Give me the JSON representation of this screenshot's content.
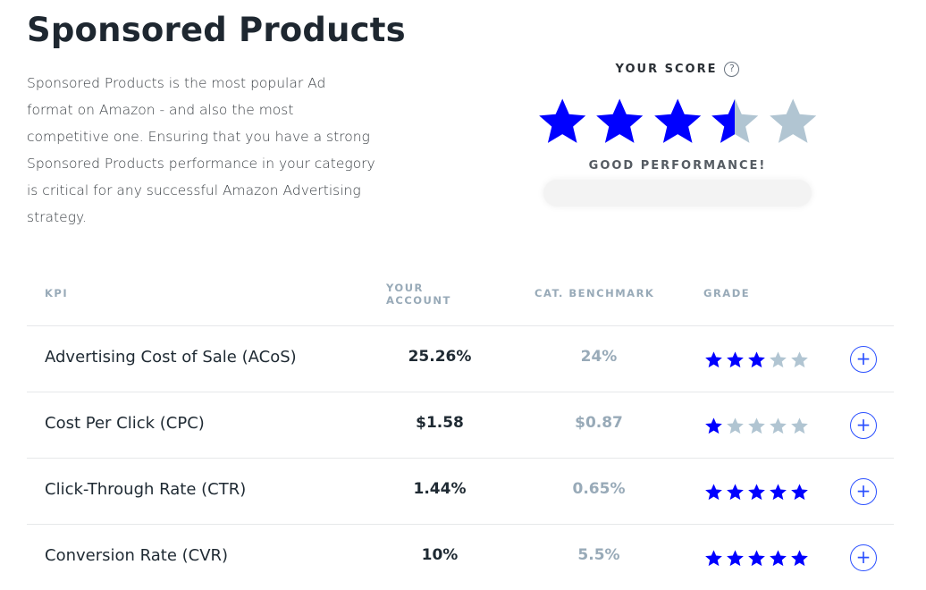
{
  "title": "Sponsored Products",
  "description": "Sponsored Products is the most popular Ad format on Amazon - and also the most competitive one. Ensuring that you have a strong Sponsored Products performance in your category is critical for any successful Amazon Advertising strategy.",
  "score": {
    "label": "YOUR SCORE",
    "help_icon": "?",
    "rating": 3.5,
    "max": 5,
    "verdict": "GOOD PERFORMANCE!"
  },
  "colors": {
    "star_filled": "#0000ff",
    "star_empty": "#b1c5d2",
    "accent": "#2b50ff"
  },
  "table": {
    "headers": {
      "kpi": "KPI",
      "account": "YOUR ACCOUNT",
      "benchmark": "CAT. BENCHMARK",
      "grade": "GRADE"
    },
    "rows": [
      {
        "kpi": "Advertising Cost of Sale (ACoS)",
        "account": "25.26%",
        "benchmark": "24%",
        "grade": 3,
        "action": "+"
      },
      {
        "kpi": "Cost Per Click (CPC)",
        "account": "$1.58",
        "benchmark": "$0.87",
        "grade": 1,
        "action": "+"
      },
      {
        "kpi": "Click-Through Rate (CTR)",
        "account": "1.44%",
        "benchmark": "0.65%",
        "grade": 5,
        "action": "+"
      },
      {
        "kpi": "Conversion Rate (CVR)",
        "account": "10%",
        "benchmark": "5.5%",
        "grade": 5,
        "action": "+"
      }
    ]
  }
}
